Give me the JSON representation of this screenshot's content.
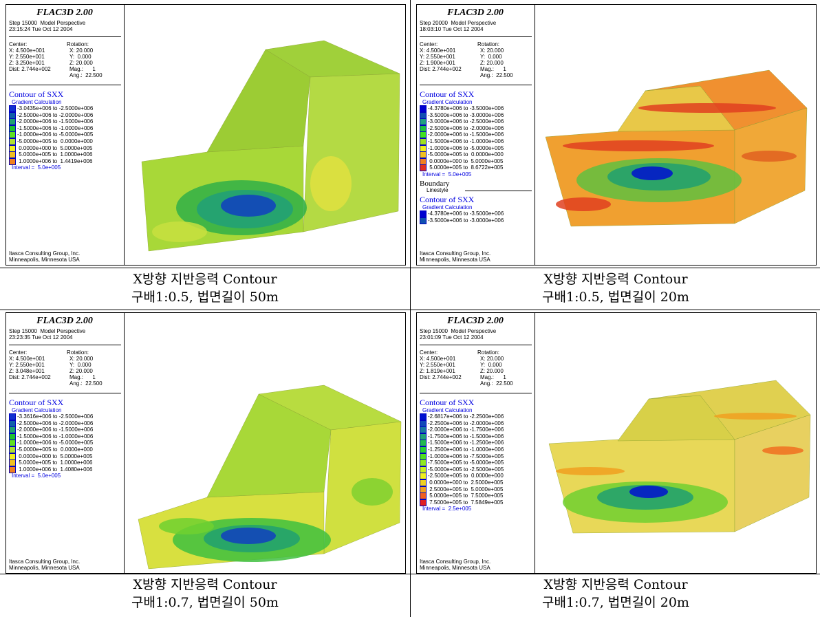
{
  "panels": [
    {
      "title": "FLAC3D 2.00",
      "step": "Step 15000  Model Perspective",
      "time": "23:15:24 Tue Oct 12 2004",
      "view": {
        "center_label": "Center:",
        "rotation_label": "Rotation:",
        "center": [
          "X: 4.500e+001",
          "Y: 2.550e+001",
          "Z: 3.250e+001",
          "Dist: 2.744e+002"
        ],
        "rotation": [
          "X: 20.000",
          "Y:  0.000",
          "Z: 20.000",
          "Mag.:      1",
          "Ang.:  22.500"
        ]
      },
      "legends": [
        {
          "title": "Contour of SXX",
          "method": "Gradient Calculation",
          "interval": "Interval =  5.0e+005",
          "items": [
            {
              "label": "-3.0435e+006 to -2.5000e+006",
              "color": "#1030d0"
            },
            {
              "label": "-2.5000e+006 to -2.0000e+006",
              "color": "#1060a8"
            },
            {
              "label": "-2.0000e+006 to -1.5000e+006",
              "color": "#20a070"
            },
            {
              "label": "-1.5000e+006 to -1.0000e+006",
              "color": "#20c030"
            },
            {
              "label": "-1.0000e+006 to -5.0000e+005",
              "color": "#60e020"
            },
            {
              "label": "-5.0000e+005 to  0.0000e+000",
              "color": "#b0e030"
            },
            {
              "label": " 0.0000e+000 to  5.0000e+005",
              "color": "#f0f020"
            },
            {
              "label": " 5.0000e+005 to  1.0000e+006",
              "color": "#f0c020"
            },
            {
              "label": " 1.0000e+006 to  1.4419e+006",
              "color": "#f08020"
            }
          ]
        }
      ],
      "company": "Itasca Consulting Group, Inc.",
      "location": "Minneapolis, Minnesota USA",
      "caption": [
        "X방향 지반응력 Contour",
        "구배1:0.5, 법면길이 50m"
      ]
    },
    {
      "title": "FLAC3D 2.00",
      "step": "Step 20000  Model Perspective",
      "time": "18:03:10 Tue Oct 12 2004",
      "view": {
        "center_label": "Center:",
        "rotation_label": "Rotation:",
        "center": [
          "X: 4.500e+001",
          "Y: 2.550e+001",
          "Z: 1.900e+001",
          "Dist: 2.744e+002"
        ],
        "rotation": [
          "X: 20.000",
          "Y:  0.000",
          "Z: 20.000",
          "Mag.:      1",
          "Ang.:  22.500"
        ]
      },
      "legends": [
        {
          "title": "Contour of SXX",
          "method": "Gradient Calculation",
          "interval": "Interval =  5.0e+005",
          "items": [
            {
              "label": "-4.3780e+006 to -3.5000e+006",
              "color": "#0000d0"
            },
            {
              "label": "-3.5000e+006 to -3.0000e+006",
              "color": "#1050b0"
            },
            {
              "label": "-3.0000e+006 to -2.5000e+006",
              "color": "#20a080"
            },
            {
              "label": "-2.5000e+006 to -2.0000e+006",
              "color": "#20c040"
            },
            {
              "label": "-2.0000e+006 to -1.5000e+006",
              "color": "#40e020"
            },
            {
              "label": "-1.5000e+006 to -1.0000e+006",
              "color": "#a0e020"
            },
            {
              "label": "-1.0000e+006 to -5.0000e+005",
              "color": "#f0f020"
            },
            {
              "label": "-5.0000e+005 to  0.0000e+000",
              "color": "#f0c020"
            },
            {
              "label": " 0.0000e+000 to  5.0000e+005",
              "color": "#f08020"
            },
            {
              "label": " 5.0000e+005 to  8.6722e+005",
              "color": "#e03020"
            }
          ]
        },
        {
          "title": "Contour of SXX",
          "method": "Gradient Calculation",
          "items": [
            {
              "label": "-4.3780e+006 to -3.5000e+006",
              "color": "#0000d0"
            },
            {
              "label": "-3.5000e+006 to -3.0000e+006",
              "color": "#1050b0"
            }
          ]
        }
      ],
      "boundary": {
        "title": "Boundary",
        "style": "Linestyle"
      },
      "company": "Itasca Consulting Group, Inc.",
      "location": "Minneapolis, Minnesota USA",
      "caption": [
        "X방향 지반응력 Contour",
        "구배1:0.5, 법면길이 20m"
      ]
    },
    {
      "title": "FLAC3D 2.00",
      "step": "Step 15000  Model Perspective",
      "time": "23:23:35 Tue Oct 12 2004",
      "view": {
        "center_label": "Center:",
        "rotation_label": "Rotation:",
        "center": [
          "X: 4.500e+001",
          "Y: 2.550e+001",
          "Z: 3.048e+001",
          "Dist: 2.744e+002"
        ],
        "rotation": [
          "X: 20.000",
          "Y:  0.000",
          "Z: 20.000",
          "Mag.:      1",
          "Ang.:  22.500"
        ]
      },
      "legends": [
        {
          "title": "Contour of SXX",
          "method": "Gradient Calculation",
          "interval": "Interval =  5.0e+005",
          "items": [
            {
              "label": "-3.3616e+006 to -2.5000e+006",
              "color": "#1030d0"
            },
            {
              "label": "-2.5000e+006 to -2.0000e+006",
              "color": "#1060a8"
            },
            {
              "label": "-2.0000e+006 to -1.5000e+006",
              "color": "#20a070"
            },
            {
              "label": "-1.5000e+006 to -1.0000e+006",
              "color": "#20c030"
            },
            {
              "label": "-1.0000e+006 to -5.0000e+005",
              "color": "#60e020"
            },
            {
              "label": "-5.0000e+005 to  0.0000e+000",
              "color": "#b0e030"
            },
            {
              "label": " 0.0000e+000 to  5.0000e+005",
              "color": "#f0f020"
            },
            {
              "label": " 5.0000e+005 to  1.0000e+006",
              "color": "#f0c020"
            },
            {
              "label": " 1.0000e+006 to  1.4080e+006",
              "color": "#f08020"
            }
          ]
        }
      ],
      "company": "Itasca Consulting Group, Inc.",
      "location": "Minneapolis, Minnesota USA",
      "caption": [
        "X방향 지반응력 Contour",
        "구배1:0.7, 법면길이 50m"
      ]
    },
    {
      "title": "FLAC3D 2.00",
      "step": "Step 15000  Model Perspective",
      "time": "23:01:09 Tue Oct 12 2004",
      "view": {
        "center_label": "Center:",
        "rotation_label": "Rotation:",
        "center": [
          "X: 4.500e+001",
          "Y: 2.550e+001",
          "Z: 1.819e+001",
          "Dist: 2.744e+002"
        ],
        "rotation": [
          "X: 20.000",
          "Y:  0.000",
          "Z: 20.000",
          "Mag.:      1",
          "Ang.:  22.500"
        ]
      },
      "legends": [
        {
          "title": "Contour of SXX",
          "method": "Gradient Calculation",
          "interval": "Interval =  2.5e+005",
          "items": [
            {
              "label": "-2.6817e+006 to -2.2500e+006",
              "color": "#0010d0"
            },
            {
              "label": "-2.2500e+006 to -2.0000e+006",
              "color": "#1048b8"
            },
            {
              "label": "-2.0000e+006 to -1.7500e+006",
              "color": "#1878a0"
            },
            {
              "label": "-1.7500e+006 to -1.5000e+006",
              "color": "#20a078"
            },
            {
              "label": "-1.5000e+006 to -1.2500e+006",
              "color": "#20b850"
            },
            {
              "label": "-1.2500e+006 to -1.0000e+006",
              "color": "#28d030"
            },
            {
              "label": "-1.0000e+006 to -7.5000e+005",
              "color": "#50e020"
            },
            {
              "label": "-7.5000e+005 to -5.0000e+005",
              "color": "#90e820"
            },
            {
              "label": "-5.0000e+005 to -2.5000e+005",
              "color": "#c8f020"
            },
            {
              "label": "-2.5000e+005 to  0.0000e+000",
              "color": "#f0f020"
            },
            {
              "label": " 0.0000e+000 to  2.5000e+005",
              "color": "#f0d020"
            },
            {
              "label": " 2.5000e+005 to  5.0000e+005",
              "color": "#f0a020"
            },
            {
              "label": " 5.0000e+005 to  7.5000e+005",
              "color": "#f06020"
            },
            {
              "label": " 7.5000e+005 to  7.5849e+005",
              "color": "#e02020"
            }
          ]
        }
      ],
      "company": "Itasca Consulting Group, Inc.",
      "location": "Minneapolis, Minnesota USA",
      "caption": [
        "X방향 지반응력 Contour",
        "구배1:0.7, 법면길이 20m"
      ]
    }
  ]
}
